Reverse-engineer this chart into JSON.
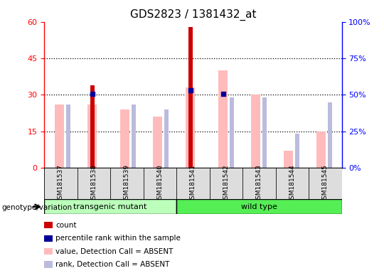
{
  "title": "GDS2823 / 1381432_at",
  "samples": [
    "GSM181537",
    "GSM181538",
    "GSM181539",
    "GSM181540",
    "GSM181541",
    "GSM181542",
    "GSM181543",
    "GSM181544",
    "GSM181545"
  ],
  "count_values": [
    0,
    34,
    0,
    0,
    58,
    0,
    0,
    0,
    0
  ],
  "percentile_rank_values": [
    0,
    30.5,
    0,
    0,
    32,
    30.5,
    0,
    0,
    0
  ],
  "absent_value_values": [
    26,
    26,
    24,
    21,
    33,
    40,
    30,
    7,
    15
  ],
  "absent_rank_values": [
    26,
    0,
    26,
    24,
    0,
    29,
    29,
    14,
    27
  ],
  "groups": [
    {
      "label": "transgenic mutant",
      "start": 0,
      "end": 4,
      "color": "#bbffbb"
    },
    {
      "label": "wild type",
      "start": 4,
      "end": 9,
      "color": "#55ee55"
    }
  ],
  "left_ylim": [
    0,
    60
  ],
  "right_ylim": [
    0,
    100
  ],
  "left_yticks": [
    0,
    15,
    30,
    45,
    60
  ],
  "right_yticks": [
    0,
    25,
    50,
    75,
    100
  ],
  "right_yticklabels": [
    "0%",
    "25%",
    "50%",
    "75%",
    "100%"
  ],
  "count_color": "#cc0000",
  "percentile_color": "#000099",
  "absent_value_color": "#ffbbbb",
  "absent_rank_color": "#bbbbdd",
  "genotype_label": "genotype/variation",
  "legend_items": [
    {
      "color": "#cc0000",
      "label": "count"
    },
    {
      "color": "#000099",
      "label": "percentile rank within the sample"
    },
    {
      "color": "#ffbbbb",
      "label": "value, Detection Call = ABSENT"
    },
    {
      "color": "#bbbbdd",
      "label": "rank, Detection Call = ABSENT"
    }
  ]
}
